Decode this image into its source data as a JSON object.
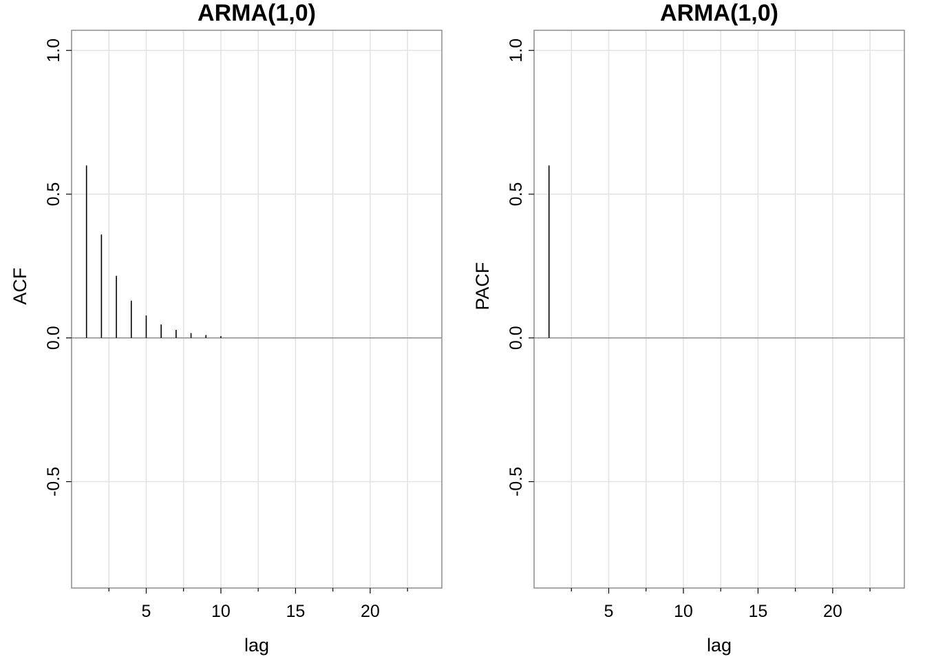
{
  "chart_data": [
    {
      "type": "bar",
      "title": "ARMA(1,0)",
      "xlabel": "lag",
      "ylabel": "ACF",
      "x": [
        1,
        2,
        3,
        4,
        5,
        6,
        7,
        8,
        9,
        10
      ],
      "values": [
        0.6,
        0.36,
        0.216,
        0.1296,
        0.0778,
        0.0467,
        0.028,
        0.0168,
        0.0101,
        0.006
      ],
      "xlim": [
        0,
        24.8
      ],
      "ylim": [
        -0.87,
        1.07
      ],
      "xticks": [
        5,
        10,
        15,
        20
      ],
      "xtick_labels": [
        "5",
        "10",
        "15",
        "20"
      ],
      "yticks": [
        -0.5,
        0,
        0.5,
        1
      ],
      "ytick_labels": [
        "-0.5",
        "0.0",
        "0.5",
        "1.0"
      ],
      "grid": true,
      "legend": "none"
    },
    {
      "type": "bar",
      "title": "ARMA(1,0)",
      "xlabel": "lag",
      "ylabel": "PACF",
      "x": [
        1
      ],
      "values": [
        0.6
      ],
      "xlim": [
        0,
        24.8
      ],
      "ylim": [
        -0.87,
        1.07
      ],
      "xticks": [
        5,
        10,
        15,
        20
      ],
      "xtick_labels": [
        "5",
        "10",
        "15",
        "20"
      ],
      "yticks": [
        -0.5,
        0,
        0.5,
        1
      ],
      "ytick_labels": [
        "-0.5",
        "0.0",
        "0.5",
        "1.0"
      ],
      "grid": true,
      "legend": "none"
    }
  ]
}
